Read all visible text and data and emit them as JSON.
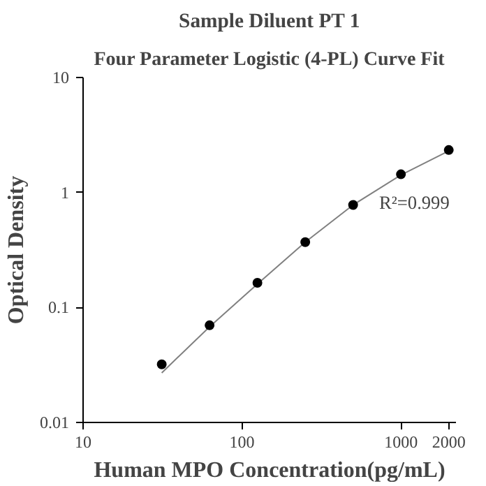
{
  "chart_data": {
    "type": "scatter",
    "title": "Sample Diluent PT 1",
    "subtitle": "Four Parameter Logistic (4-PL) Curve Fit",
    "xlabel": "Human MPO Concentration(pg/mL)",
    "ylabel": "Optical Density",
    "annotations": [
      "R²=0.999"
    ],
    "log": "xy",
    "grid": false,
    "xlim": [
      10,
      2220
    ],
    "ylim": [
      0.01,
      10
    ],
    "xticks": [
      10,
      100,
      1000,
      2000
    ],
    "yticks": [
      0.01,
      0.1,
      1,
      10
    ],
    "series": [
      {
        "marker": "circle",
        "color": "#000000",
        "x": [
          31.25,
          62.5,
          125,
          250,
          500,
          1000,
          2000
        ],
        "values": [
          0.032,
          0.07,
          0.164,
          0.37,
          0.78,
          1.44,
          2.34
        ]
      },
      {
        "type": "line",
        "marker": "none",
        "color": "#808080",
        "line_style": "solid",
        "x": [
          31.25,
          62.5,
          125,
          250,
          500,
          1000,
          2000
        ],
        "values": [
          0.027,
          0.068,
          0.16,
          0.37,
          0.78,
          1.42,
          2.3
        ]
      }
    ]
  }
}
